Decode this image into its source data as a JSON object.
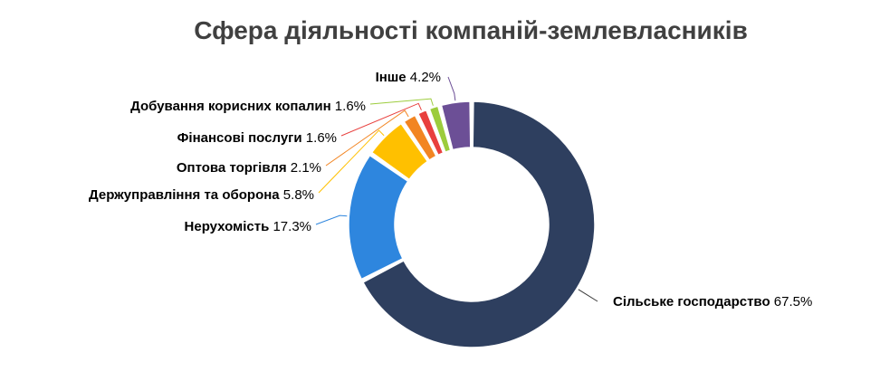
{
  "chart_data": {
    "type": "pie",
    "title": "Сфера діяльності компаній-землевласників",
    "categories": [
      "Сільське господарство",
      "Нерухомість",
      "Держуправління та оборона",
      "Оптова торгівля",
      "Фінансові послуги",
      "Добування корисних копалин",
      "Інше"
    ],
    "values": [
      67.5,
      17.3,
      5.8,
      2.1,
      1.6,
      1.6,
      4.2
    ],
    "value_labels": [
      "67.5%",
      "17.3%",
      "5.8%",
      "2.1%",
      "1.6%",
      "1.6%",
      "4.2%"
    ],
    "colors": [
      "#2e3f5f",
      "#2e86de",
      "#ffc000",
      "#f28522",
      "#e8403e",
      "#9ccc3c",
      "#6c4f96"
    ],
    "legend": "none",
    "hole": "donut"
  }
}
